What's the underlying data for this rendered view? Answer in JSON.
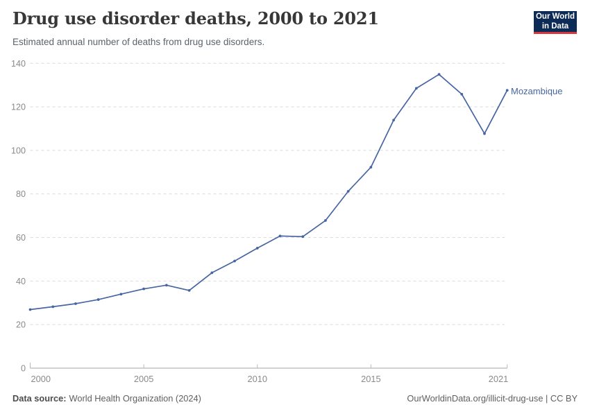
{
  "header": {
    "title": "Drug use disorder deaths, 2000 to 2021",
    "subtitle": "Estimated annual number of deaths from drug use disorders.",
    "logo": {
      "line1": "Our World",
      "line2": "in Data"
    }
  },
  "chart_data": {
    "type": "line",
    "title": "Drug use disorder deaths, 2000 to 2021",
    "x": [
      2000,
      2001,
      2002,
      2003,
      2004,
      2005,
      2006,
      2007,
      2008,
      2009,
      2010,
      2011,
      2012,
      2013,
      2014,
      2015,
      2016,
      2017,
      2018,
      2019,
      2020,
      2021
    ],
    "series": [
      {
        "name": "Mozambique",
        "color": "#4765a2",
        "values": [
          26.9,
          28.2,
          29.6,
          31.5,
          34.0,
          36.4,
          38.1,
          35.7,
          43.8,
          49.2,
          55.1,
          60.7,
          60.4,
          67.8,
          81.2,
          92.3,
          113.9,
          128.5,
          134.9,
          125.8,
          107.7,
          127.6
        ]
      }
    ],
    "xlim": [
      2000,
      2021
    ],
    "ylim": [
      0,
      140
    ],
    "x_ticks": [
      2000,
      2005,
      2010,
      2015,
      2021
    ],
    "y_ticks": [
      0,
      20,
      40,
      60,
      80,
      100,
      120,
      140
    ],
    "grid": "horizontal-dashed",
    "legend_position": "line-end-label"
  },
  "footer": {
    "source_label": "Data source:",
    "source_value": "World Health Organization (2024)",
    "credit": "OurWorldinData.org/illicit-drug-use | CC BY"
  },
  "colors": {
    "accent_line": "#4765a2",
    "logo_bg": "#0d2b57",
    "logo_stripe": "#d7373e",
    "grid": "#d9d9d9",
    "axis": "#a3a3a3",
    "tick_text": "#8a8a8a"
  }
}
